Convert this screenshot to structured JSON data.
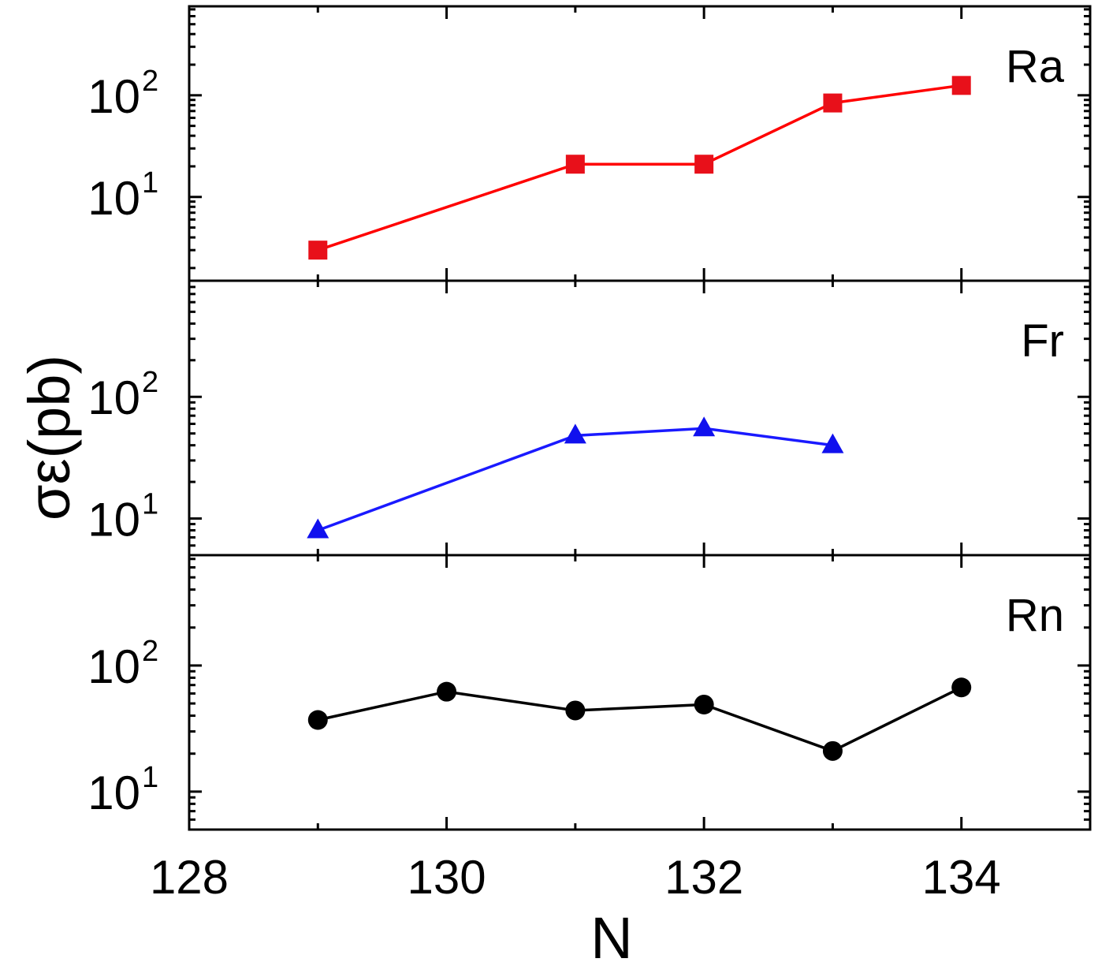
{
  "chart_data": {
    "type": "line",
    "xlabel": "N",
    "ylabel": "σε(pb)",
    "x_axis": {
      "range": [
        128,
        135
      ],
      "major_ticks": [
        128,
        130,
        132,
        134
      ],
      "tick_labels": [
        "128",
        "130",
        "132",
        "134"
      ],
      "minor_ticks": [
        129,
        131,
        133,
        135
      ]
    },
    "y_scale": "log",
    "panels": [
      {
        "label": "Ra",
        "ylim": [
          1.5,
          750
        ],
        "y_tick_labels": [
          {
            "value": 10,
            "base": "10",
            "exp": "1"
          },
          {
            "value": 100,
            "base": "10",
            "exp": "2"
          }
        ],
        "series": {
          "marker": "square",
          "color": "#ff0000",
          "marker_color": "#e8101a",
          "x": [
            129,
            131,
            132,
            133,
            134
          ],
          "y": [
            3,
            21,
            21,
            84,
            125
          ]
        }
      },
      {
        "label": "Fr",
        "ylim": [
          5,
          900
        ],
        "y_tick_labels": [
          {
            "value": 10,
            "base": "10",
            "exp": "1"
          },
          {
            "value": 100,
            "base": "10",
            "exp": "2"
          }
        ],
        "series": {
          "marker": "triangle",
          "color": "#1a1aff",
          "marker_color": "#1010ee",
          "x": [
            129,
            131,
            132,
            133
          ],
          "y": [
            8,
            48,
            55,
            40
          ]
        }
      },
      {
        "label": "Rn",
        "ylim": [
          5,
          750
        ],
        "y_tick_labels": [
          {
            "value": 10,
            "base": "10",
            "exp": "1"
          },
          {
            "value": 100,
            "base": "10",
            "exp": "2"
          }
        ],
        "series": {
          "marker": "circle",
          "color": "#000000",
          "marker_color": "#000000",
          "x": [
            129,
            130,
            131,
            132,
            133,
            134
          ],
          "y": [
            37,
            62,
            44,
            49,
            21,
            67
          ]
        }
      }
    ]
  }
}
